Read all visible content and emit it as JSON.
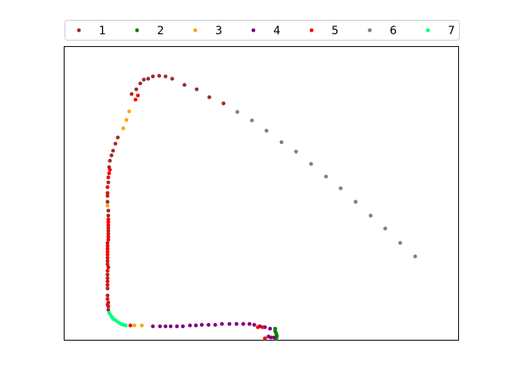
{
  "chart_data": {
    "type": "scatter",
    "title": "",
    "xlabel": "",
    "ylabel": "",
    "axes_ticks": "none",
    "grid": false,
    "legend_position": "top",
    "xlim": [
      0,
      100
    ],
    "ylim": [
      0,
      100
    ],
    "series": [
      {
        "name": "1",
        "color": "#a52a2a",
        "points": [
          [
            11.3,
            10.2
          ],
          [
            11.3,
            11.4
          ],
          [
            11.3,
            12.7
          ],
          [
            11.1,
            15.1
          ],
          [
            11.1,
            17.5
          ],
          [
            11.1,
            19.9
          ],
          [
            11.1,
            22.2
          ],
          [
            11.3,
            24.7
          ],
          [
            11.1,
            26.8
          ],
          [
            11.1,
            33.0
          ],
          [
            11.3,
            36.1
          ],
          [
            11.3,
            38.1
          ],
          [
            11.3,
            42.3
          ],
          [
            11.3,
            44.0
          ],
          [
            11.1,
            47.0
          ],
          [
            11.1,
            50.0
          ],
          [
            11.3,
            53.6
          ],
          [
            11.5,
            58.8
          ],
          [
            11.7,
            61.0
          ],
          [
            12.1,
            62.8
          ],
          [
            12.5,
            64.4
          ],
          [
            13.1,
            66.8
          ],
          [
            13.7,
            68.9
          ],
          [
            17.2,
            83.7
          ],
          [
            18.4,
            85.3
          ],
          [
            19.4,
            87.3
          ],
          [
            20.3,
            88.6
          ],
          [
            21.4,
            88.9
          ],
          [
            22.6,
            89.7
          ],
          [
            24.2,
            89.9
          ],
          [
            25.8,
            89.7
          ],
          [
            27.5,
            88.9
          ],
          [
            30.6,
            86.8
          ],
          [
            33.7,
            85.3
          ],
          [
            36.9,
            82.6
          ],
          [
            40.5,
            80.5
          ]
        ]
      },
      {
        "name": "2",
        "color": "#008000",
        "points": [
          [
            53.6,
            3.8
          ],
          [
            53.6,
            3.0
          ],
          [
            53.8,
            2.4
          ],
          [
            54.0,
            1.6
          ],
          [
            54.0,
            1.0
          ],
          [
            53.8,
            0.4
          ]
        ]
      },
      {
        "name": "3",
        "color": "#ffa500",
        "points": [
          [
            11.1,
            45.7
          ],
          [
            15.1,
            72.0
          ],
          [
            15.9,
            74.9
          ],
          [
            16.6,
            77.8
          ],
          [
            17.9,
            4.9
          ],
          [
            19.8,
            4.9
          ]
        ]
      },
      {
        "name": "4",
        "color": "#800080",
        "points": [
          [
            22.6,
            4.6
          ],
          [
            24.4,
            4.6
          ],
          [
            25.8,
            4.6
          ],
          [
            27.1,
            4.6
          ],
          [
            28.7,
            4.6
          ],
          [
            30.2,
            4.6
          ],
          [
            32.0,
            4.9
          ],
          [
            33.5,
            4.9
          ],
          [
            35.0,
            5.1
          ],
          [
            36.7,
            5.1
          ],
          [
            38.4,
            5.1
          ],
          [
            40.1,
            5.4
          ],
          [
            42.0,
            5.4
          ],
          [
            43.8,
            5.4
          ],
          [
            45.5,
            5.4
          ],
          [
            47.1,
            5.4
          ],
          [
            48.3,
            5.1
          ],
          [
            49.7,
            4.6
          ],
          [
            51.0,
            4.3
          ],
          [
            52.3,
            3.8
          ],
          [
            51.9,
            1.1
          ],
          [
            52.5,
            0.8
          ],
          [
            53.3,
            0.8
          ]
        ]
      },
      {
        "name": "5",
        "color": "#ff0000",
        "points": [
          [
            11.1,
            12.0
          ],
          [
            11.1,
            13.9
          ],
          [
            11.1,
            18.7
          ],
          [
            11.1,
            21.0
          ],
          [
            11.1,
            23.5
          ],
          [
            11.1,
            25.7
          ],
          [
            11.1,
            27.9
          ],
          [
            11.1,
            29.0
          ],
          [
            11.1,
            30.0
          ],
          [
            11.1,
            31.0
          ],
          [
            11.1,
            32.0
          ],
          [
            11.3,
            34.1
          ],
          [
            11.3,
            35.1
          ],
          [
            11.3,
            37.1
          ],
          [
            11.3,
            39.1
          ],
          [
            11.3,
            40.1
          ],
          [
            11.3,
            41.0
          ],
          [
            11.1,
            49.0
          ],
          [
            11.1,
            52.0
          ],
          [
            11.3,
            55.3
          ],
          [
            11.5,
            56.7
          ],
          [
            11.7,
            57.9
          ],
          [
            16.9,
            4.9
          ],
          [
            18.2,
            81.8
          ],
          [
            18.8,
            83.2
          ],
          [
            49.2,
            4.3
          ],
          [
            50.4,
            4.3
          ],
          [
            51.0,
            0.5
          ]
        ]
      },
      {
        "name": "6",
        "color": "#808080",
        "points": [
          [
            44.0,
            77.6
          ],
          [
            47.7,
            74.7
          ],
          [
            51.4,
            71.2
          ],
          [
            55.2,
            67.3
          ],
          [
            58.9,
            64.1
          ],
          [
            62.7,
            59.9
          ],
          [
            66.5,
            55.6
          ],
          [
            70.2,
            51.6
          ],
          [
            74.0,
            47.0
          ],
          [
            77.8,
            42.3
          ],
          [
            81.5,
            37.9
          ],
          [
            85.3,
            33.0
          ],
          [
            89.1,
            28.4
          ]
        ]
      },
      {
        "name": "7",
        "color": "#00ff7f",
        "points": [
          [
            11.5,
            9.2
          ],
          [
            11.9,
            8.4
          ],
          [
            12.3,
            7.6
          ],
          [
            12.7,
            7.0
          ],
          [
            13.3,
            6.5
          ],
          [
            13.9,
            5.9
          ],
          [
            14.5,
            5.4
          ],
          [
            15.1,
            5.1
          ],
          [
            15.7,
            4.9
          ]
        ]
      }
    ]
  }
}
